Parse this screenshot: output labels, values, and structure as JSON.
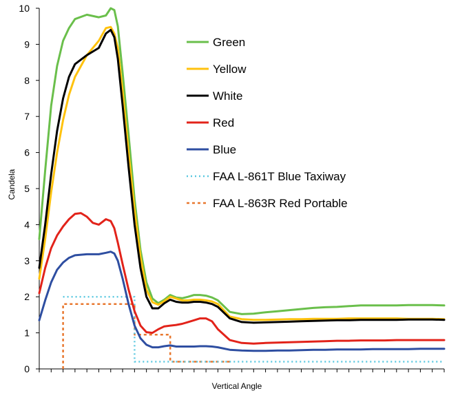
{
  "chart_data": {
    "type": "line",
    "title": "",
    "xlabel": "Vertical Angle",
    "ylabel": "Candela",
    "xlim": [
      0,
      34
    ],
    "ylim": [
      0,
      10
    ],
    "y_ticks": [
      "0",
      "1",
      "2",
      "3",
      "4",
      "5",
      "6",
      "7",
      "8",
      "9",
      "10"
    ],
    "x_tick_count": 34,
    "grid": false,
    "legend_position": "upper-right",
    "series": [
      {
        "name": "Green",
        "color": "#6abf4b",
        "style": "solid",
        "x": [
          0,
          0.5,
          1,
          1.5,
          2,
          2.5,
          3,
          4,
          5,
          5.6,
          6,
          6.3,
          6.6,
          7,
          7.5,
          8,
          8.5,
          9,
          9.5,
          10,
          10.5,
          11,
          11.5,
          12,
          12.5,
          13,
          13.5,
          14,
          14.5,
          15,
          16,
          17,
          18,
          19,
          20,
          21,
          22,
          23,
          24,
          25,
          26,
          27,
          28,
          29,
          30,
          31,
          32,
          33,
          34
        ],
        "y": [
          3.6,
          5.5,
          7.3,
          8.4,
          9.1,
          9.45,
          9.7,
          9.82,
          9.75,
          9.8,
          10.0,
          9.95,
          9.5,
          8.2,
          6.5,
          4.7,
          3.3,
          2.4,
          1.95,
          1.82,
          1.92,
          2.05,
          1.98,
          1.96,
          2.0,
          2.05,
          2.05,
          2.03,
          1.98,
          1.9,
          1.58,
          1.52,
          1.53,
          1.57,
          1.6,
          1.63,
          1.66,
          1.69,
          1.71,
          1.72,
          1.74,
          1.76,
          1.76,
          1.76,
          1.76,
          1.77,
          1.77,
          1.77,
          1.76
        ]
      },
      {
        "name": "Yellow",
        "color": "#ffc20e",
        "style": "solid",
        "x": [
          0,
          0.5,
          1,
          1.5,
          2,
          2.5,
          3,
          4,
          5,
          5.6,
          6,
          6.3,
          6.6,
          7,
          7.5,
          8,
          8.5,
          9,
          9.5,
          10,
          10.5,
          11,
          11.5,
          12,
          12.5,
          13,
          13.5,
          14,
          14.5,
          15,
          16,
          17,
          18,
          19,
          20,
          21,
          22,
          23,
          24,
          25,
          26,
          27,
          28,
          29,
          30,
          31,
          32,
          33,
          34
        ],
        "y": [
          2.5,
          3.6,
          4.9,
          6.0,
          6.9,
          7.6,
          8.1,
          8.7,
          9.1,
          9.45,
          9.48,
          9.3,
          8.9,
          7.7,
          6.0,
          4.4,
          3.1,
          2.2,
          1.85,
          1.78,
          1.88,
          2.0,
          1.95,
          1.9,
          1.9,
          1.92,
          1.92,
          1.9,
          1.87,
          1.8,
          1.45,
          1.38,
          1.36,
          1.36,
          1.37,
          1.38,
          1.38,
          1.39,
          1.39,
          1.39,
          1.4,
          1.4,
          1.4,
          1.4,
          1.4,
          1.39,
          1.39,
          1.39,
          1.38
        ]
      },
      {
        "name": "White",
        "color": "#000000",
        "style": "solid",
        "x": [
          0,
          0.5,
          1,
          1.5,
          2,
          2.5,
          3,
          4,
          5,
          5.6,
          6,
          6.3,
          6.6,
          7,
          7.5,
          8,
          8.5,
          9,
          9.5,
          10,
          10.5,
          11,
          11.5,
          12,
          12.5,
          13,
          13.5,
          14,
          14.5,
          15,
          16,
          17,
          18,
          19,
          20,
          21,
          22,
          23,
          24,
          25,
          26,
          27,
          28,
          29,
          30,
          31,
          32,
          33,
          34
        ],
        "y": [
          2.8,
          4.0,
          5.4,
          6.6,
          7.5,
          8.1,
          8.45,
          8.7,
          8.9,
          9.3,
          9.4,
          9.2,
          8.6,
          7.3,
          5.6,
          4.0,
          2.8,
          2.0,
          1.68,
          1.68,
          1.82,
          1.92,
          1.86,
          1.84,
          1.84,
          1.86,
          1.86,
          1.84,
          1.8,
          1.72,
          1.4,
          1.3,
          1.28,
          1.29,
          1.3,
          1.31,
          1.32,
          1.33,
          1.34,
          1.35,
          1.35,
          1.36,
          1.36,
          1.36,
          1.36,
          1.37,
          1.37,
          1.37,
          1.36
        ]
      },
      {
        "name": "Red",
        "color": "#e2231a",
        "style": "solid",
        "x": [
          0,
          0.5,
          1,
          1.5,
          2,
          2.5,
          3,
          3.5,
          4,
          4.5,
          5,
          5.6,
          6,
          6.3,
          6.6,
          7,
          7.5,
          8,
          8.5,
          9,
          9.5,
          10,
          10.5,
          11,
          11.5,
          12,
          12.5,
          13,
          13.5,
          14,
          14.5,
          15,
          16,
          17,
          18,
          19,
          20,
          21,
          22,
          23,
          24,
          25,
          26,
          27,
          28,
          29,
          30,
          31,
          32,
          33,
          34
        ],
        "y": [
          2.1,
          2.8,
          3.35,
          3.7,
          3.95,
          4.15,
          4.3,
          4.32,
          4.22,
          4.05,
          4.0,
          4.15,
          4.1,
          3.9,
          3.5,
          2.9,
          2.2,
          1.6,
          1.2,
          1.02,
          1.0,
          1.1,
          1.18,
          1.2,
          1.22,
          1.25,
          1.3,
          1.35,
          1.4,
          1.4,
          1.32,
          1.1,
          0.8,
          0.72,
          0.7,
          0.72,
          0.73,
          0.74,
          0.75,
          0.76,
          0.77,
          0.78,
          0.78,
          0.79,
          0.79,
          0.79,
          0.8,
          0.8,
          0.8,
          0.8,
          0.8
        ]
      },
      {
        "name": "Blue",
        "color": "#2e4ea1",
        "style": "solid",
        "x": [
          0,
          0.5,
          1,
          1.5,
          2,
          2.5,
          3,
          4,
          5,
          5.6,
          6,
          6.3,
          6.6,
          7,
          7.5,
          8,
          8.5,
          9,
          9.5,
          10,
          10.5,
          11,
          11.5,
          12,
          12.5,
          13,
          13.5,
          14,
          14.5,
          15,
          16,
          17,
          18,
          19,
          20,
          21,
          22,
          23,
          24,
          25,
          26,
          27,
          28,
          29,
          30,
          31,
          32,
          33,
          34
        ],
        "y": [
          1.35,
          1.9,
          2.4,
          2.75,
          2.95,
          3.08,
          3.15,
          3.18,
          3.18,
          3.22,
          3.25,
          3.2,
          3.0,
          2.5,
          1.8,
          1.2,
          0.85,
          0.67,
          0.6,
          0.6,
          0.63,
          0.65,
          0.62,
          0.62,
          0.62,
          0.62,
          0.63,
          0.63,
          0.62,
          0.6,
          0.53,
          0.51,
          0.5,
          0.5,
          0.51,
          0.51,
          0.52,
          0.53,
          0.53,
          0.54,
          0.54,
          0.54,
          0.55,
          0.55,
          0.55,
          0.55,
          0.56,
          0.56,
          0.56
        ]
      },
      {
        "name": "FAA L-861T Blue Taxiway",
        "color": "#5bc8e0",
        "style": "dotted",
        "x": [
          2,
          8,
          8,
          34
        ],
        "y": [
          2.0,
          2.0,
          0.2,
          0.2
        ]
      },
      {
        "name": "FAA L-863R Red Portable",
        "color": "#e8772e",
        "style": "dashed",
        "x": [
          2,
          2,
          8,
          8,
          11,
          11,
          16
        ],
        "y": [
          0,
          1.8,
          1.8,
          0.95,
          0.95,
          0.2,
          0.2
        ]
      }
    ]
  }
}
